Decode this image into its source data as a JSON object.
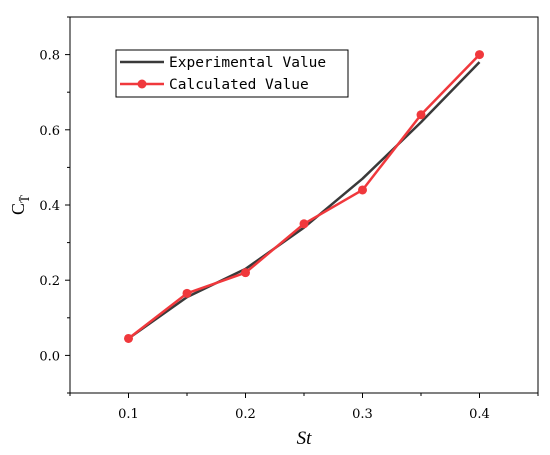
{
  "chart_data": {
    "type": "line",
    "title": "",
    "xlabel": "St",
    "ylabel": "C",
    "ylabel_subscript": "T̄",
    "xlim": [
      0.05,
      0.45
    ],
    "ylim": [
      -0.1,
      0.9
    ],
    "x_ticks": [
      0.1,
      0.2,
      0.3,
      0.4
    ],
    "x_tick_labels": [
      "0.1",
      "0.2",
      "0.3",
      "0.4"
    ],
    "y_ticks": [
      0.0,
      0.2,
      0.4,
      0.6,
      0.8
    ],
    "y_tick_labels": [
      "0.0",
      "0.2",
      "0.4",
      "0.6",
      "0.8"
    ],
    "grid": false,
    "legend_position": "top-left",
    "series": [
      {
        "name": "Experimental Value",
        "color": "#3a3a3a",
        "marker": "none",
        "x": [
          0.1,
          0.15,
          0.2,
          0.25,
          0.3,
          0.35,
          0.4
        ],
        "y": [
          0.045,
          0.155,
          0.23,
          0.34,
          0.47,
          0.62,
          0.78
        ]
      },
      {
        "name": "Calculated Value",
        "color": "#f0383c",
        "marker": "circle",
        "x": [
          0.1,
          0.15,
          0.2,
          0.25,
          0.3,
          0.35,
          0.4
        ],
        "y": [
          0.045,
          0.165,
          0.22,
          0.35,
          0.44,
          0.64,
          0.8
        ]
      }
    ]
  }
}
